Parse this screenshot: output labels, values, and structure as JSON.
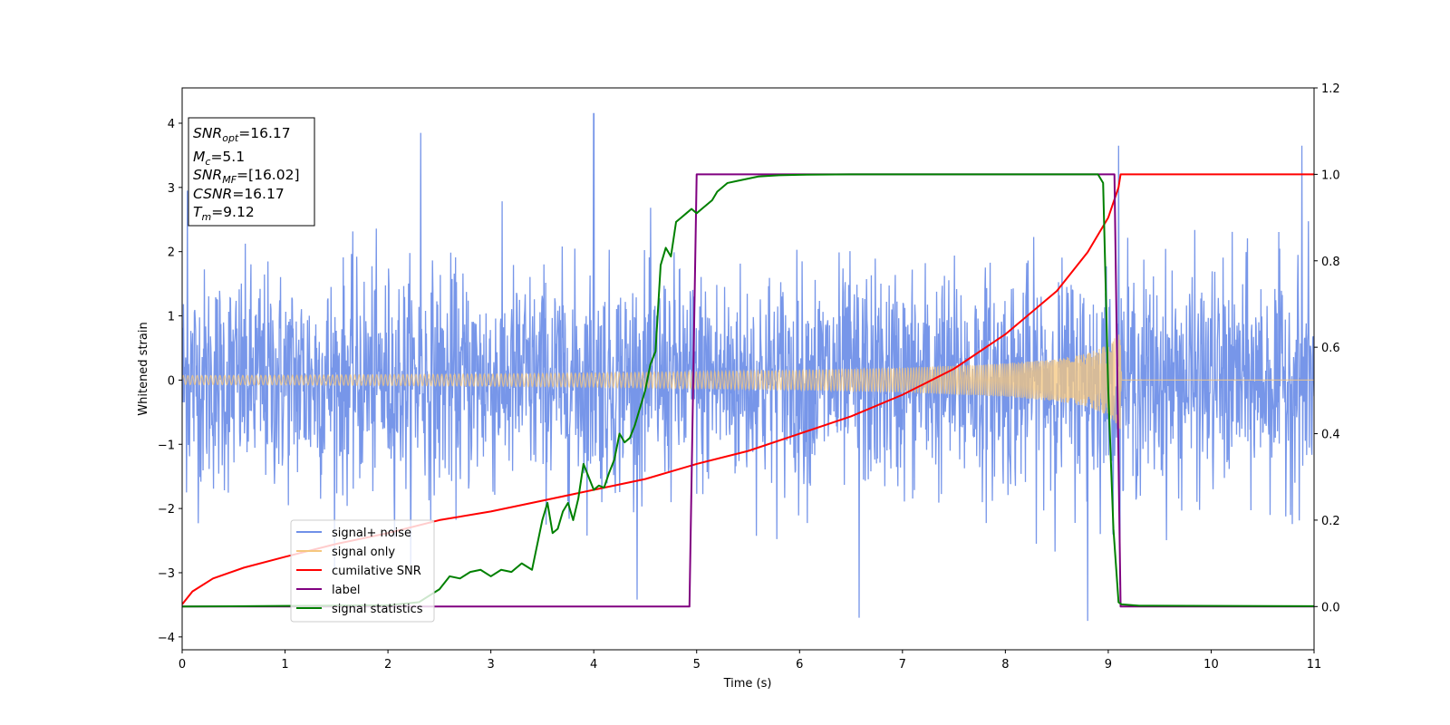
{
  "chart_data": {
    "type": "line",
    "xlabel": "Time (s)",
    "ylabel": "Whitened strain",
    "xlim": [
      0,
      11
    ],
    "ylim_left": [
      -4.2,
      4.55
    ],
    "ylim_right": [
      -0.1,
      1.2
    ],
    "x_ticks": [
      "0",
      "1",
      "2",
      "3",
      "4",
      "5",
      "6",
      "7",
      "8",
      "9",
      "10",
      "11"
    ],
    "y_left_ticks": [
      {
        "value": 4,
        "label": "4"
      },
      {
        "value": 3,
        "label": "3"
      },
      {
        "value": 2,
        "label": "2"
      },
      {
        "value": 1,
        "label": "1"
      },
      {
        "value": 0,
        "label": "0"
      },
      {
        "value": -1,
        "label": "−1"
      },
      {
        "value": -2,
        "label": "−2"
      },
      {
        "value": -3,
        "label": "−3"
      },
      {
        "value": -4,
        "label": "−4"
      }
    ],
    "y_right_ticks": [
      {
        "value": 1.2,
        "label": "1.2"
      },
      {
        "value": 1.0,
        "label": "1.0"
      },
      {
        "value": 0.8,
        "label": "0.8"
      },
      {
        "value": 0.6,
        "label": "0.6"
      },
      {
        "value": 0.4,
        "label": "0.4"
      },
      {
        "value": 0.2,
        "label": "0.2"
      },
      {
        "value": 0.0,
        "label": "0.0"
      }
    ],
    "grid": false,
    "legend_position": "lower-left",
    "info_box": {
      "snr_opt": "=16.17",
      "mc": "=5.1",
      "snr_mf": "=[16.02]",
      "csnr": "=16.17",
      "tm": "=9.12"
    },
    "series": [
      {
        "name": "signal+ noise",
        "axis": "left",
        "color": "#7090e8",
        "description": "whitened noise with std ~0.85 and occasional spikes to ~4.2; signal embedded until merger at 9.12 s",
        "notable_spikes": [
          [
            0.05,
            2.95
          ],
          [
            2.32,
            3.85
          ],
          [
            4.0,
            4.15
          ],
          [
            9.1,
            3.65
          ],
          [
            10.88,
            3.65
          ],
          [
            6.58,
            -3.7
          ],
          [
            8.8,
            -3.75
          ]
        ]
      },
      {
        "name": "signal only",
        "axis": "left",
        "color": "#f5c77e",
        "x": [
          0,
          1,
          2,
          3,
          4,
          5,
          6,
          7,
          8,
          8.5,
          8.8,
          9.0,
          9.1,
          9.12,
          9.13,
          11
        ],
        "amplitude": [
          0.07,
          0.075,
          0.085,
          0.095,
          0.11,
          0.13,
          0.155,
          0.19,
          0.26,
          0.33,
          0.42,
          0.55,
          0.72,
          0.8,
          0.0,
          0.0
        ]
      },
      {
        "name": "cumilative SNR",
        "axis": "right",
        "color": "#ff0000",
        "x": [
          0,
          0.1,
          0.3,
          0.6,
          1,
          1.5,
          2,
          2.5,
          3,
          3.5,
          4,
          4.5,
          5,
          5.5,
          6,
          6.5,
          7,
          7.5,
          8,
          8.5,
          8.8,
          9.0,
          9.1,
          9.12,
          11
        ],
        "y": [
          0.005,
          0.035,
          0.065,
          0.09,
          0.115,
          0.145,
          0.17,
          0.2,
          0.22,
          0.245,
          0.27,
          0.295,
          0.33,
          0.36,
          0.4,
          0.44,
          0.49,
          0.55,
          0.63,
          0.73,
          0.82,
          0.9,
          0.97,
          1.0,
          1.0
        ]
      },
      {
        "name": "label",
        "axis": "right",
        "color": "#800080",
        "x": [
          0,
          4.93,
          5.0,
          9.06,
          9.12,
          11
        ],
        "y": [
          0,
          0,
          1,
          1,
          0,
          0
        ]
      },
      {
        "name": "signal statistics",
        "axis": "right",
        "color": "#008000",
        "x": [
          0,
          2.0,
          2.3,
          2.5,
          2.6,
          2.7,
          2.8,
          2.9,
          3.0,
          3.1,
          3.2,
          3.3,
          3.4,
          3.5,
          3.55,
          3.6,
          3.65,
          3.7,
          3.75,
          3.8,
          3.85,
          3.9,
          3.95,
          4.0,
          4.05,
          4.1,
          4.15,
          4.2,
          4.25,
          4.3,
          4.35,
          4.4,
          4.5,
          4.55,
          4.6,
          4.65,
          4.7,
          4.75,
          4.8,
          4.85,
          4.9,
          4.95,
          5.0,
          5.05,
          5.1,
          5.15,
          5.2,
          5.3,
          5.4,
          5.5,
          5.6,
          5.8,
          6.0,
          6.5,
          7.0,
          8.0,
          8.5,
          8.9,
          8.95,
          9.0,
          9.05,
          9.1,
          9.13,
          9.3,
          11
        ],
        "y": [
          0.0,
          0.003,
          0.01,
          0.04,
          0.07,
          0.065,
          0.08,
          0.085,
          0.07,
          0.085,
          0.08,
          0.1,
          0.085,
          0.2,
          0.24,
          0.17,
          0.18,
          0.22,
          0.24,
          0.2,
          0.25,
          0.33,
          0.3,
          0.27,
          0.28,
          0.275,
          0.31,
          0.34,
          0.4,
          0.38,
          0.39,
          0.42,
          0.5,
          0.56,
          0.59,
          0.79,
          0.83,
          0.81,
          0.89,
          0.9,
          0.91,
          0.92,
          0.91,
          0.92,
          0.93,
          0.94,
          0.96,
          0.98,
          0.985,
          0.99,
          0.995,
          0.998,
          0.999,
          1.0,
          1.0,
          1.0,
          1.0,
          1.0,
          0.98,
          0.5,
          0.18,
          0.01,
          0.005,
          0.002,
          0.001
        ]
      }
    ]
  }
}
